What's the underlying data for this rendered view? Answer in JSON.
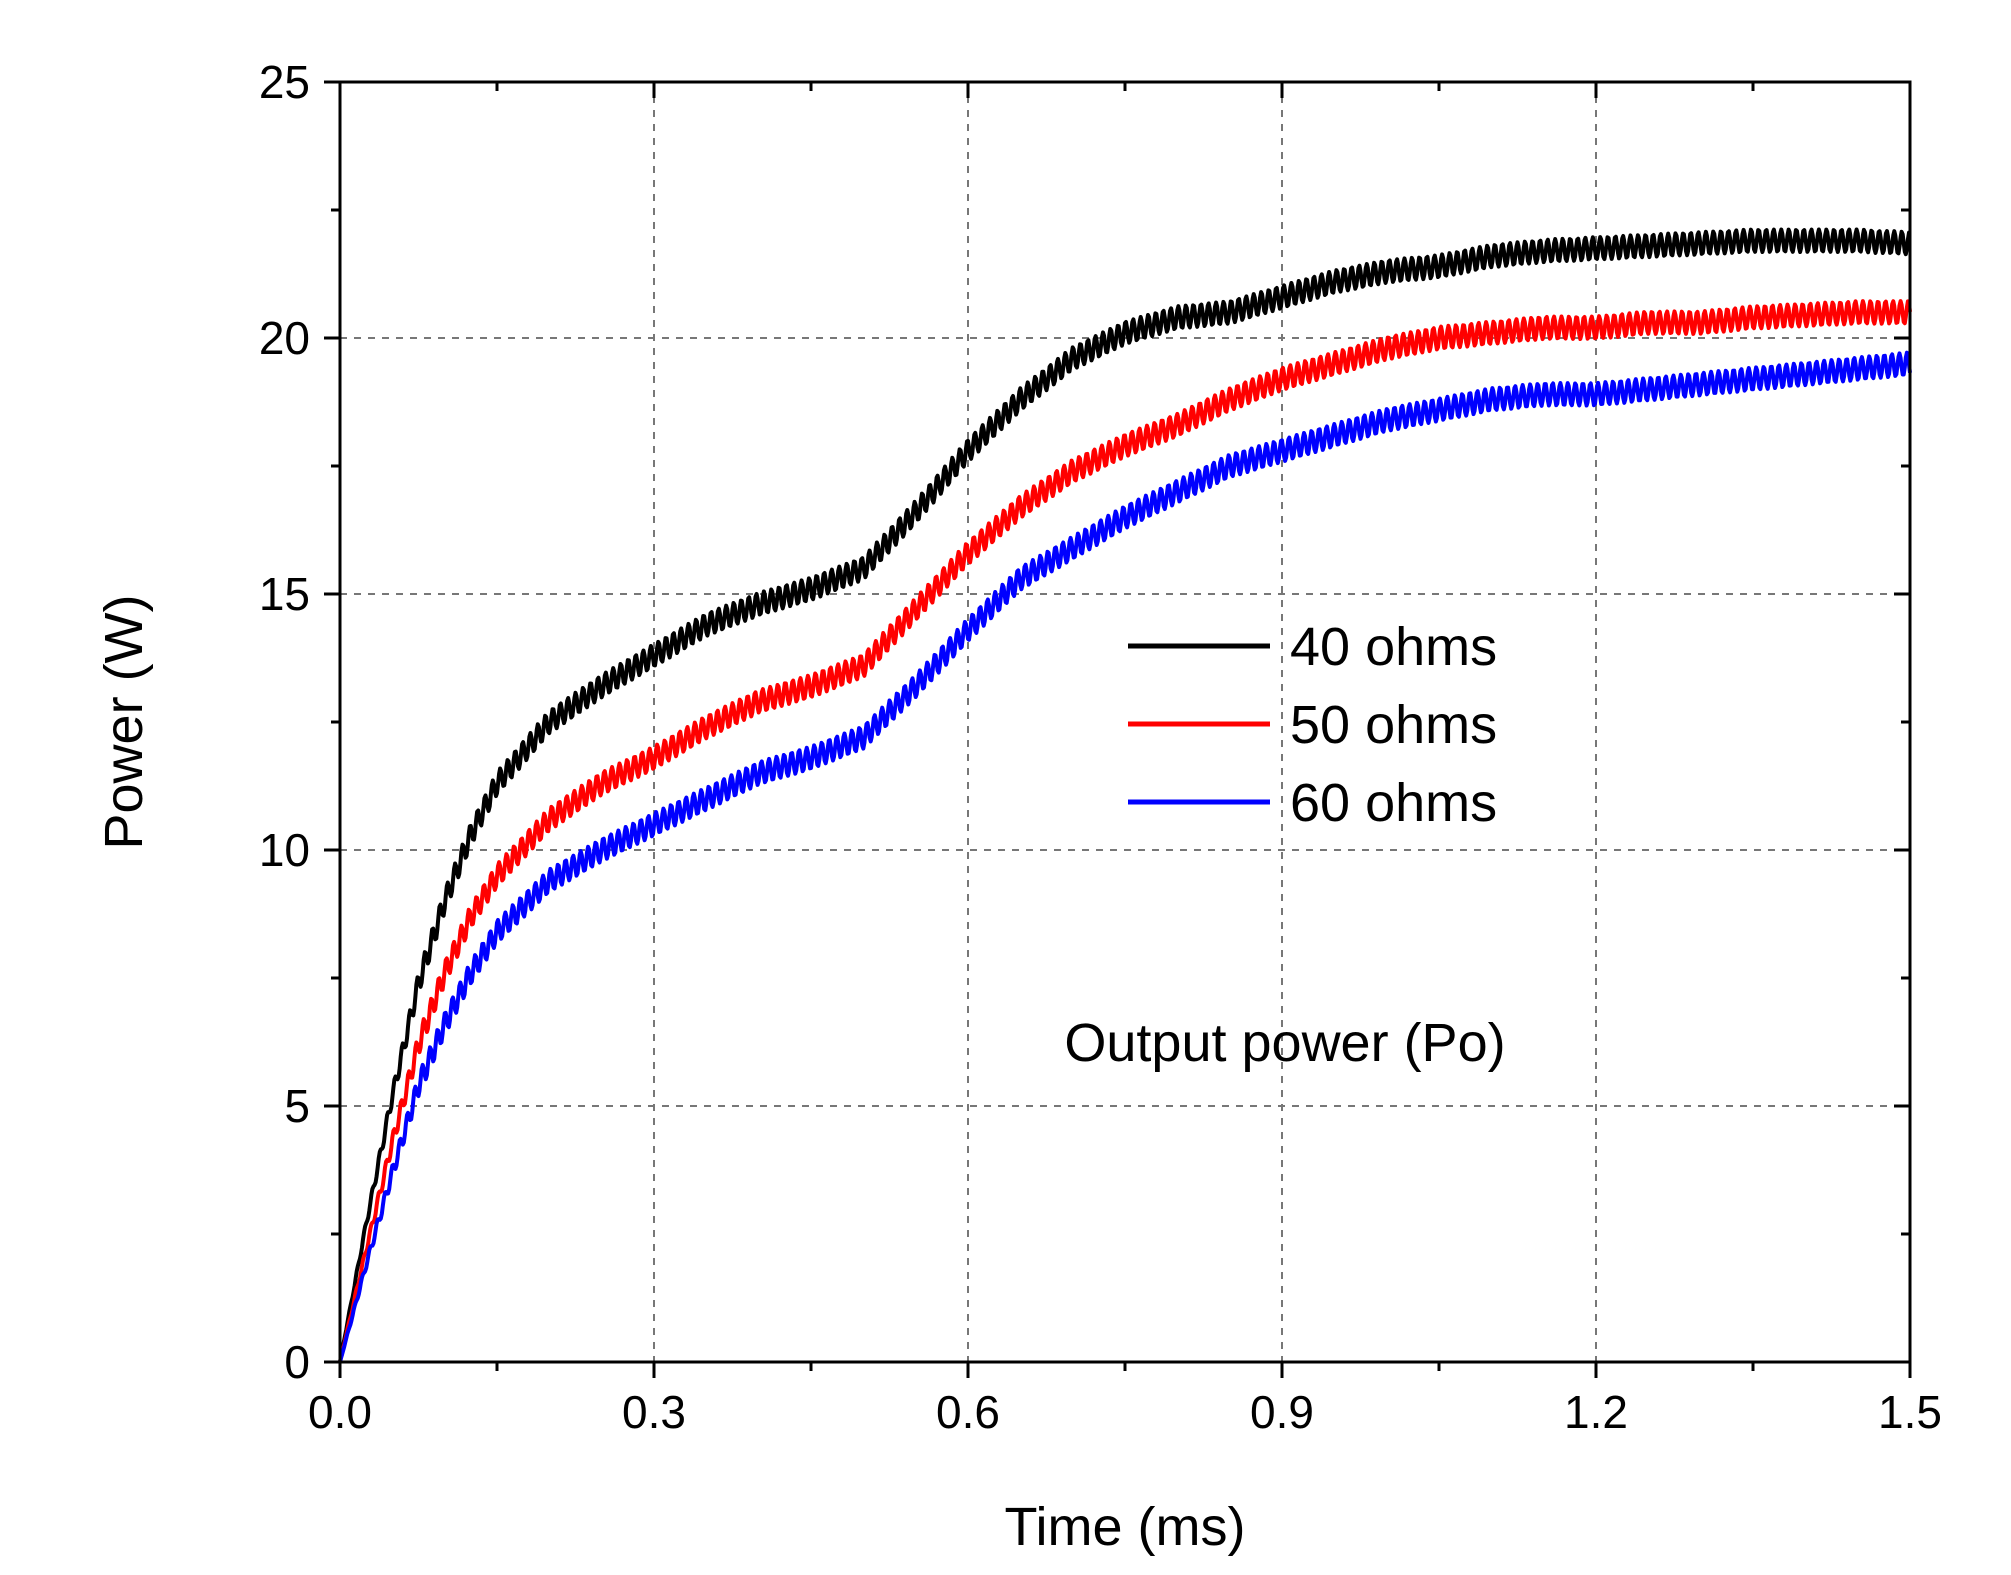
{
  "chart_data": {
    "type": "line",
    "title": "",
    "xlabel": "Time (ms)",
    "ylabel": "Power (W)",
    "xlim": [
      0,
      1.5
    ],
    "ylim": [
      0,
      25
    ],
    "x_ticks": [
      "0.0",
      "0.3",
      "0.6",
      "0.9",
      "1.2",
      "1.5"
    ],
    "y_ticks": [
      "0",
      "5",
      "10",
      "15",
      "20",
      "25"
    ],
    "grid": true,
    "legend_position": "center-right",
    "annotation": "Output power (Po)",
    "x": [
      0,
      0.025,
      0.05,
      0.075,
      0.1,
      0.125,
      0.15,
      0.2,
      0.25,
      0.3,
      0.35,
      0.4,
      0.45,
      0.5,
      0.55,
      0.6,
      0.65,
      0.7,
      0.75,
      0.8,
      0.85,
      0.9,
      0.95,
      1.0,
      1.05,
      1.1,
      1.15,
      1.2,
      1.25,
      1.3,
      1.35,
      1.4,
      1.45,
      1.5
    ],
    "series": [
      {
        "name": "40 ohms",
        "color": "#000000",
        "values": [
          0,
          2.7,
          5.2,
          7.4,
          9.0,
          10.3,
          11.3,
          12.5,
          13.2,
          13.8,
          14.4,
          14.8,
          15.1,
          15.5,
          16.6,
          17.8,
          18.8,
          19.6,
          20.1,
          20.4,
          20.5,
          20.8,
          21.1,
          21.3,
          21.4,
          21.6,
          21.7,
          21.75,
          21.8,
          21.85,
          21.9,
          21.9,
          21.9,
          21.85
        ]
      },
      {
        "name": "50 ohms",
        "color": "#ff0000",
        "values": [
          0,
          2.2,
          4.3,
          6.2,
          7.6,
          8.7,
          9.5,
          10.6,
          11.3,
          11.8,
          12.4,
          12.9,
          13.2,
          13.6,
          14.7,
          15.8,
          16.7,
          17.4,
          17.9,
          18.3,
          18.8,
          19.2,
          19.5,
          19.8,
          20.0,
          20.1,
          20.2,
          20.2,
          20.3,
          20.3,
          20.4,
          20.45,
          20.5,
          20.5
        ]
      },
      {
        "name": "60 ohms",
        "color": "#0000ff",
        "values": [
          0,
          1.9,
          3.7,
          5.4,
          6.6,
          7.6,
          8.4,
          9.4,
          10.0,
          10.5,
          11.0,
          11.5,
          11.8,
          12.2,
          13.2,
          14.3,
          15.3,
          15.9,
          16.5,
          17.0,
          17.5,
          17.8,
          18.1,
          18.4,
          18.6,
          18.8,
          18.9,
          18.9,
          19.0,
          19.1,
          19.2,
          19.3,
          19.4,
          19.5
        ]
      }
    ]
  }
}
